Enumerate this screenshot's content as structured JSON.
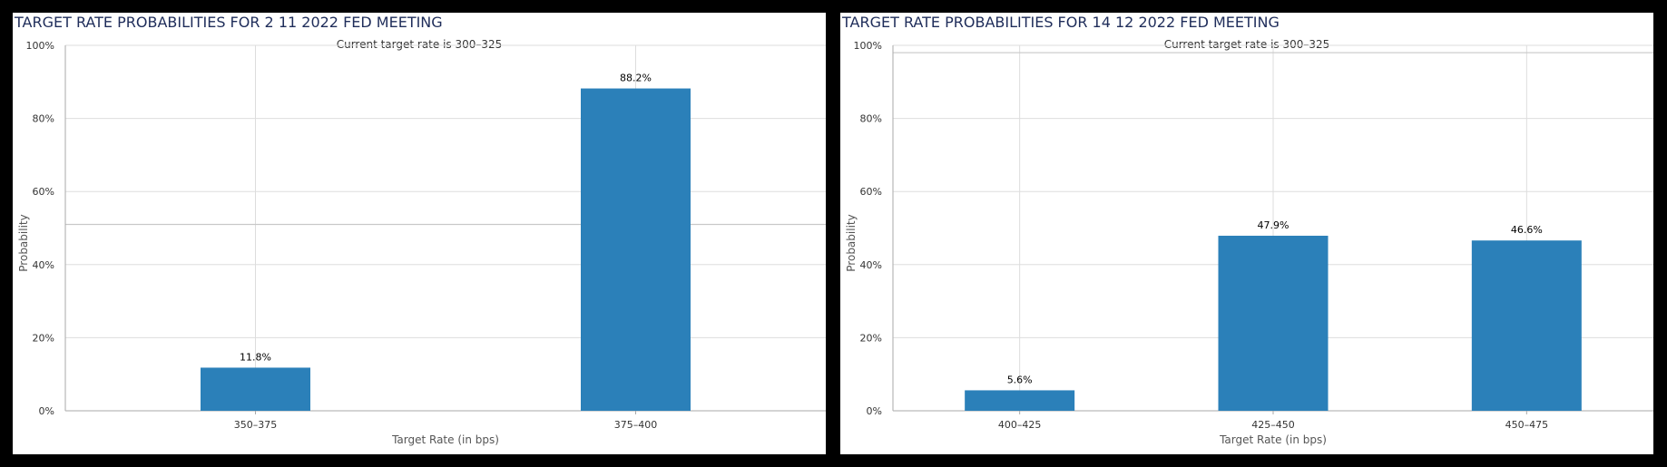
{
  "colors": {
    "bar": "#2b80b9",
    "grid": "#dddddd",
    "axis": "#aaaaaa",
    "title": "#1f2d5a"
  },
  "panels": [
    {
      "title": "TARGET RATE PROBABILITIES FOR 2 11 2022 FED MEETING"
    },
    {
      "title": "TARGET RATE PROBABILITIES FOR 14 12 2022 FED MEETING"
    }
  ],
  "chart_data": [
    {
      "type": "bar",
      "subtitle": "Current target rate is 300–325",
      "xlabel": "Target Rate (in bps)",
      "ylabel": "Probability",
      "categories": [
        "350–375",
        "375–400"
      ],
      "values": [
        11.8,
        88.2
      ],
      "data_labels": [
        "11.8%",
        "88.2%"
      ],
      "ylim": [
        0,
        100
      ],
      "yticks": [
        0,
        20,
        40,
        60,
        80,
        100
      ],
      "ytick_labels": [
        "0%",
        "20%",
        "40%",
        "60%",
        "80%",
        "100%"
      ],
      "grid": true,
      "reference_line": 51
    },
    {
      "type": "bar",
      "subtitle": "Current target rate is 300–325",
      "xlabel": "Target Rate (in bps)",
      "ylabel": "Probability",
      "categories": [
        "400–425",
        "425–450",
        "450–475"
      ],
      "values": [
        5.6,
        47.9,
        46.6
      ],
      "data_labels": [
        "5.6%",
        "47.9%",
        "46.6%"
      ],
      "ylim": [
        0,
        100
      ],
      "yticks": [
        0,
        20,
        40,
        60,
        80,
        100
      ],
      "ytick_labels": [
        "0%",
        "20%",
        "40%",
        "60%",
        "80%",
        "100%"
      ],
      "grid": true,
      "reference_line": 98
    }
  ]
}
